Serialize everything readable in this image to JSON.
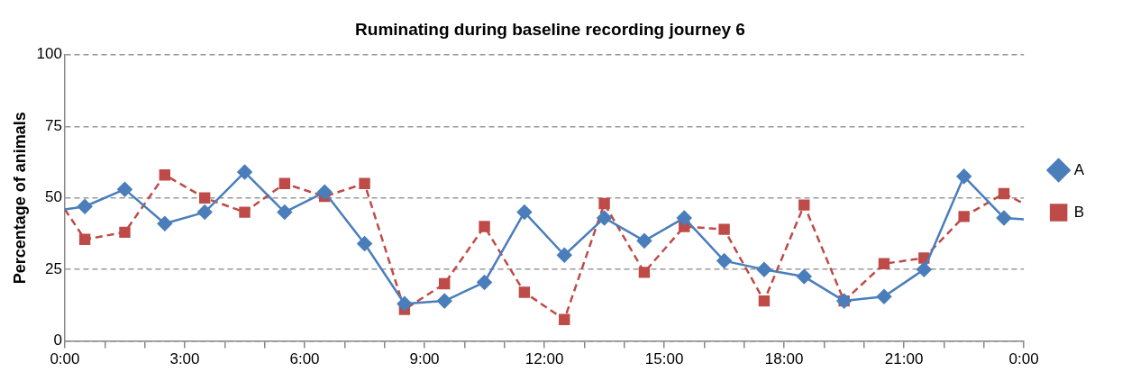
{
  "chart_data": {
    "type": "line",
    "title": "Ruminating during baseline recording journey 6",
    "ylabel": "Percentage of animals",
    "xlim": [
      0,
      24
    ],
    "xticks": [
      {
        "value": 0,
        "label": "0:00"
      },
      {
        "value": 1,
        "label": null
      },
      {
        "value": 2,
        "label": null
      },
      {
        "value": 3,
        "label": "3:00"
      },
      {
        "value": 4,
        "label": null
      },
      {
        "value": 5,
        "label": null
      },
      {
        "value": 6,
        "label": "6:00"
      },
      {
        "value": 7,
        "label": null
      },
      {
        "value": 8,
        "label": null
      },
      {
        "value": 9,
        "label": "9:00"
      },
      {
        "value": 10,
        "label": null
      },
      {
        "value": 11,
        "label": null
      },
      {
        "value": 12,
        "label": "12:00"
      },
      {
        "value": 13,
        "label": null
      },
      {
        "value": 14,
        "label": null
      },
      {
        "value": 15,
        "label": "15:00"
      },
      {
        "value": 16,
        "label": null
      },
      {
        "value": 17,
        "label": null
      },
      {
        "value": 18,
        "label": "18:00"
      },
      {
        "value": 19,
        "label": null
      },
      {
        "value": 20,
        "label": null
      },
      {
        "value": 21,
        "label": "21:00"
      },
      {
        "value": 22,
        "label": null
      },
      {
        "value": 23,
        "label": null
      },
      {
        "value": 24,
        "label": "0:00"
      }
    ],
    "ylim": [
      0,
      100
    ],
    "yticks": [
      0,
      25,
      50,
      75,
      100
    ],
    "grid": "y",
    "legend": "right",
    "x": [
      0,
      0.5,
      1.5,
      2.5,
      3.5,
      4.5,
      5.5,
      6.5,
      7.5,
      8.5,
      9.5,
      10.5,
      11.5,
      12.5,
      13.5,
      14.5,
      15.5,
      16.5,
      17.5,
      18.5,
      19.5,
      20.5,
      21.5,
      22.5,
      23.5,
      24
    ],
    "series": [
      {
        "name": "A",
        "color": "#4a7ebb",
        "marker": "diamond",
        "line_style": "solid",
        "values": [
          46,
          47,
          53,
          41,
          45,
          59,
          45,
          52,
          34,
          13,
          14,
          20.5,
          45,
          30,
          43,
          35,
          43,
          28,
          25,
          22.5,
          14,
          15.5,
          25,
          57.5,
          43,
          42.5
        ]
      },
      {
        "name": "B",
        "color": "#be4b48",
        "marker": "square",
        "line_style": "dashed",
        "values": [
          46,
          35.5,
          38,
          58,
          50,
          45,
          55,
          50.5,
          55,
          11,
          20,
          40,
          17,
          7.5,
          48,
          24,
          40,
          39,
          14,
          47.5,
          14,
          27,
          29,
          43.5,
          51.5,
          48
        ]
      }
    ]
  }
}
